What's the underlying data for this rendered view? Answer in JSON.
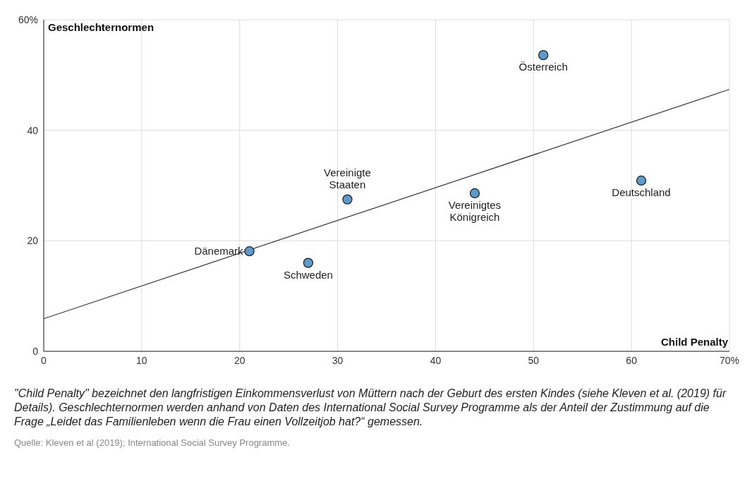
{
  "chart_data": {
    "type": "scatter",
    "xlabel": "Child Penalty",
    "ylabel": "Geschlechternormen",
    "xlim": [
      0,
      70
    ],
    "xticks": [
      0,
      10,
      20,
      30,
      40,
      50,
      60,
      {
        "value": 70,
        "label": "70%"
      }
    ],
    "ylim": [
      0,
      60
    ],
    "yticks": [
      0,
      20,
      40,
      {
        "value": 60,
        "label": "60%"
      }
    ],
    "grid": true,
    "series": [
      {
        "marker": "circle",
        "color": "#5b9bd0",
        "x": [
          51,
          31,
          44,
          61,
          21,
          27
        ],
        "values": [
          53.6,
          27.5,
          28.6,
          30.9,
          18.1,
          16.0
        ]
      },
      {
        "type": "line",
        "color": "#333333",
        "x": [
          0,
          70
        ],
        "values": [
          5.9,
          47.4
        ]
      }
    ],
    "annotations": [
      {
        "text": "Österreich",
        "x": 51,
        "y": 53.6
      },
      {
        "text": "Vereinigte Staaten",
        "x": 31,
        "y": 27.5
      },
      {
        "text": "Vereinigtes Königreich",
        "x": 44,
        "y": 28.6
      },
      {
        "text": "Deutschland",
        "x": 61,
        "y": 30.9
      },
      {
        "text": "Dänemark",
        "x": 21,
        "y": 18.1
      },
      {
        "text": "Schweden",
        "x": 27,
        "y": 16.0
      },
      "\"Child Penalty\" bezeichnet den langfristigen Einkommensverlust von Müttern nach der Geburt des ersten Kindes (siehe Kleven et al. (2019) für Details). Geschlechternormen werden anhand von Daten des International Social Survey Programme als der Anteil der Zustimmung auf die Frage „Leidet das Familienleben wenn die Frau einen Vollzeitjob hat?“ gemessen.",
      "Quelle: Kleven et al (2019); International Social Survey Programme."
    ]
  }
}
